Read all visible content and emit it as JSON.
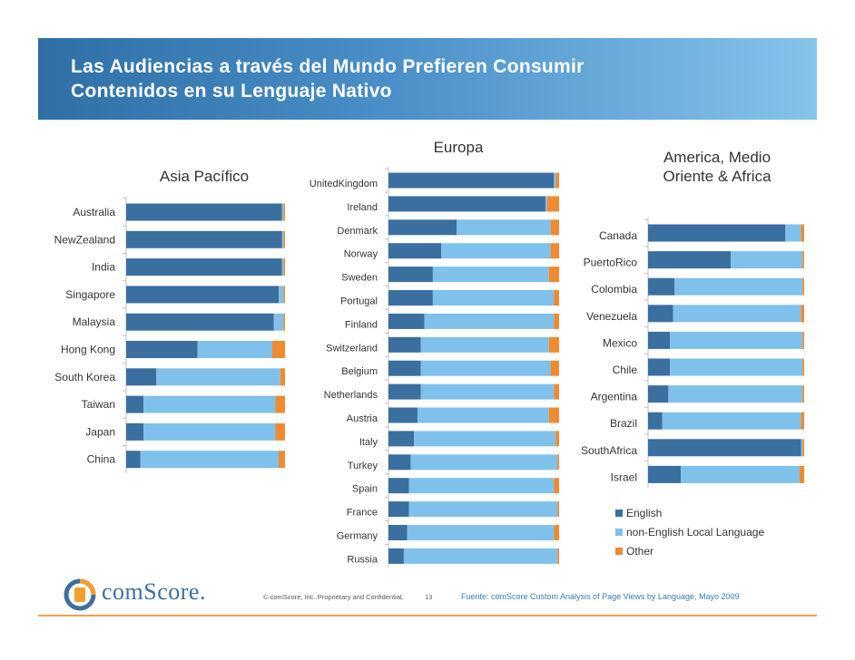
{
  "header": {
    "title": "Las Audiencias a través del Mundo Prefieren Consumir\nContenidos en su Lenguaje Nativo"
  },
  "colors": {
    "english": "#3a6f9f",
    "local": "#7fc1ea",
    "other": "#f08a30",
    "header_start": "#2f6fa6",
    "header_end": "#86c3ea"
  },
  "legend": {
    "english": "English",
    "local": "non-English Local Language",
    "other": "Other"
  },
  "footer": {
    "brand": "comScore.",
    "copyright": "© comScore, Inc.  Proprietary and Confidential.",
    "page_number": "13",
    "source": "Fuente: comScore Custom Analysis of Page Views by Language,  Mayo 2009"
  },
  "chart_data": [
    {
      "type": "bar",
      "orientation": "horizontal",
      "stacked": true,
      "title": "Asia Pacífico",
      "xlim": [
        0,
        100
      ],
      "categories": [
        "Australia",
        "NewZealand",
        "India",
        "Singapore",
        "Malaysia",
        "Hong Kong",
        "South Korea",
        "Taiwan",
        "Japan",
        "China"
      ],
      "series": [
        {
          "name": "English",
          "values": [
            98,
            98,
            98,
            96,
            93,
            45,
            19,
            11,
            11,
            9
          ]
        },
        {
          "name": "non-English Local Language",
          "values": [
            1,
            1,
            1,
            3,
            6,
            47,
            78,
            83,
            83,
            87
          ]
        },
        {
          "name": "Other",
          "values": [
            1,
            1,
            1,
            1,
            1,
            8,
            3,
            6,
            6,
            4
          ]
        }
      ]
    },
    {
      "type": "bar",
      "orientation": "horizontal",
      "stacked": true,
      "title": "Europa",
      "xlim": [
        0,
        100
      ],
      "categories": [
        "UnitedKingdom",
        "Ireland",
        "Denmark",
        "Norway",
        "Sweden",
        "Portugal",
        "Finland",
        "Switzerland",
        "Belgium",
        "Netherlands",
        "Austria",
        "Italy",
        "Turkey",
        "Spain",
        "France",
        "Germany",
        "Russia"
      ],
      "series": [
        {
          "name": "English",
          "values": [
            97,
            92,
            40,
            31,
            26,
            26,
            21,
            19,
            19,
            19,
            17,
            15,
            13,
            12,
            12,
            11,
            9
          ]
        },
        {
          "name": "non-English Local Language",
          "values": [
            1,
            1,
            55,
            64,
            68,
            71,
            76,
            75,
            76,
            78,
            77,
            83,
            86,
            85,
            87,
            86,
            90
          ]
        },
        {
          "name": "Other",
          "values": [
            2,
            7,
            5,
            5,
            6,
            3,
            3,
            6,
            5,
            3,
            6,
            2,
            1,
            3,
            1,
            3,
            1
          ]
        }
      ]
    },
    {
      "type": "bar",
      "orientation": "horizontal",
      "stacked": true,
      "title": "America, Medio Oriente & Africa",
      "xlim": [
        0,
        100
      ],
      "categories": [
        "Canada",
        "PuertoRico",
        "Colombia",
        "Venezuela",
        "Mexico",
        "Chile",
        "Argentina",
        "Brazil",
        "SouthAfrica",
        "Israel"
      ],
      "series": [
        {
          "name": "English",
          "values": [
            88,
            53,
            17,
            16,
            14,
            14,
            13,
            9,
            98,
            21
          ]
        },
        {
          "name": "non-English Local Language",
          "values": [
            10,
            46,
            82,
            82,
            85,
            85,
            86,
            89,
            1,
            76
          ]
        },
        {
          "name": "Other",
          "values": [
            2,
            1,
            1,
            2,
            1,
            1,
            1,
            2,
            1,
            3
          ]
        }
      ]
    }
  ]
}
